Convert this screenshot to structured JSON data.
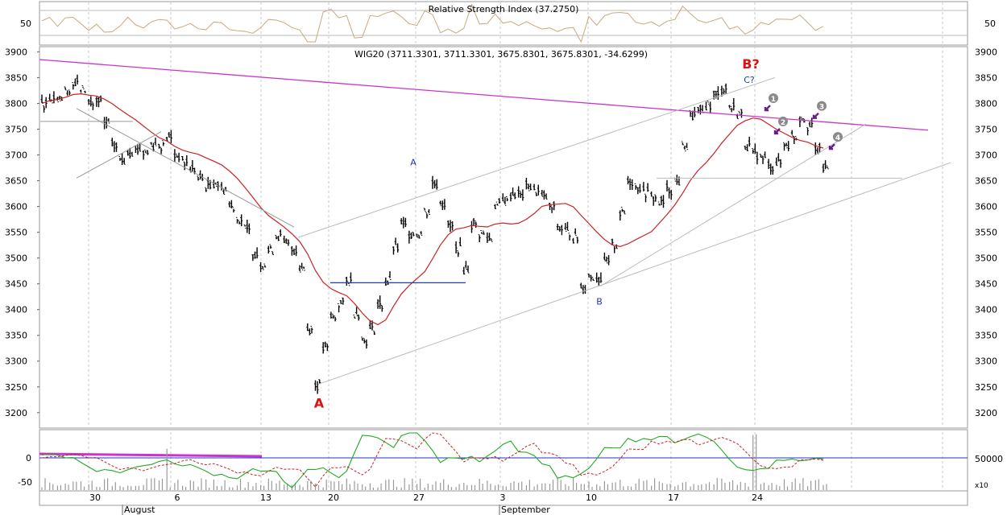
{
  "chart_data": {
    "type": "candlestick",
    "panels": {
      "rsi": {
        "title": "Relative Strength Index (37.2750)",
        "ticks": [
          50
        ],
        "line_color": "#c8a882"
      },
      "price": {
        "title": "WIG20 (3711.3301, 3711.3301, 3675.8301, 3675.8301, -34.6299)",
        "ylim": [
          3170,
          3910
        ],
        "ticks": [
          3900,
          3850,
          3800,
          3750,
          3700,
          3650,
          3600,
          3550,
          3500,
          3450,
          3400,
          3350,
          3300,
          3250,
          3200
        ],
        "trendline_color": "#cc33cc",
        "ma_color": "#cc2222",
        "last_close": 3675.8301
      },
      "oscillator": {
        "ticks_left": [
          0,
          -50
        ],
        "ticks_right": [
          "50000"
        ],
        "scale_label": "x10",
        "fast_color": "#22aa22",
        "slow_color": "#cc2222"
      }
    },
    "x_axis": {
      "day_labels": [
        "30",
        "6",
        "13",
        "20",
        "27",
        "3",
        "10",
        "17",
        "24"
      ],
      "month_labels": [
        "August",
        "September"
      ]
    },
    "annotations": {
      "wave_labels": [
        {
          "text": "B?",
          "color": "#dd1111"
        },
        {
          "text": "A",
          "color": "#dd1111"
        },
        {
          "text": "A",
          "color": "#2233bb"
        },
        {
          "text": "B",
          "color": "#2233bb"
        },
        {
          "text": "C?",
          "color": "#2233bb"
        }
      ],
      "markers": [
        "1",
        "2",
        "3",
        "4"
      ]
    },
    "price_path": [
      [
        0,
        3800
      ],
      [
        4,
        3840
      ],
      [
        7,
        3795
      ],
      [
        9,
        3720
      ],
      [
        10,
        3695
      ],
      [
        13,
        3715
      ],
      [
        16,
        3730
      ],
      [
        18,
        3685
      ],
      [
        21,
        3650
      ],
      [
        24,
        3610
      ],
      [
        26,
        3545
      ],
      [
        28,
        3490
      ],
      [
        30,
        3540
      ],
      [
        32,
        3525
      ],
      [
        33,
        3470
      ],
      [
        35,
        3260
      ],
      [
        37,
        3390
      ],
      [
        39,
        3450
      ],
      [
        41,
        3345
      ],
      [
        43,
        3400
      ],
      [
        44,
        3460
      ],
      [
        46,
        3565
      ],
      [
        48,
        3545
      ],
      [
        50,
        3640
      ],
      [
        52,
        3570
      ],
      [
        54,
        3480
      ],
      [
        55,
        3575
      ],
      [
        57,
        3540
      ],
      [
        58,
        3600
      ],
      [
        60,
        3615
      ],
      [
        62,
        3640
      ],
      [
        64,
        3620
      ],
      [
        66,
        3560
      ],
      [
        68,
        3545
      ],
      [
        69,
        3450
      ],
      [
        71,
        3470
      ],
      [
        73,
        3520
      ],
      [
        75,
        3640
      ],
      [
        77,
        3620
      ],
      [
        79,
        3605
      ],
      [
        81,
        3660
      ],
      [
        83,
        3780
      ],
      [
        85,
        3800
      ],
      [
        87,
        3825
      ],
      [
        89,
        3770
      ],
      [
        90,
        3730
      ],
      [
        91,
        3705
      ],
      [
        93,
        3680
      ],
      [
        95,
        3710
      ],
      [
        97,
        3765
      ],
      [
        98,
        3755
      ],
      [
        99,
        3710
      ],
      [
        100,
        3676
      ]
    ]
  }
}
